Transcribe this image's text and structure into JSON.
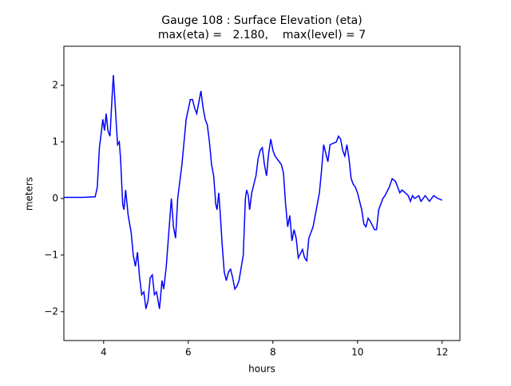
{
  "chart_data": {
    "type": "line",
    "title": "Gauge 108 : Surface Elevation (eta)",
    "subtitle": "max(eta) =   2.180,    max(level) = 7",
    "x_label": "hours",
    "y_label": "meters",
    "xlim": [
      3.06,
      12.42
    ],
    "ylim": [
      -2.51,
      2.69
    ],
    "xticks": [
      4,
      6,
      8,
      10,
      12
    ],
    "yticks": [
      {
        "value": -2,
        "label": "−2"
      },
      {
        "value": -1,
        "label": "−1"
      },
      0,
      1,
      2
    ],
    "grid": false,
    "series": [
      {
        "color": "#0000ff",
        "x": [
          3.06,
          3.5,
          3.8,
          3.85,
          3.9,
          3.95,
          3.98,
          4.02,
          4.06,
          4.1,
          4.15,
          4.2,
          4.23,
          4.26,
          4.3,
          4.33,
          4.37,
          4.4,
          4.45,
          4.48,
          4.52,
          4.58,
          4.65,
          4.7,
          4.75,
          4.8,
          4.85,
          4.9,
          4.95,
          5.0,
          5.05,
          5.1,
          5.15,
          5.2,
          5.25,
          5.32,
          5.38,
          5.42,
          5.48,
          5.55,
          5.6,
          5.65,
          5.7,
          5.75,
          5.8,
          5.85,
          5.9,
          5.95,
          6.05,
          6.1,
          6.15,
          6.2,
          6.25,
          6.3,
          6.35,
          6.4,
          6.45,
          6.5,
          6.55,
          6.6,
          6.65,
          6.68,
          6.72,
          6.75,
          6.8,
          6.85,
          6.9,
          6.95,
          7.0,
          7.05,
          7.1,
          7.15,
          7.2,
          7.3,
          7.35,
          7.38,
          7.42,
          7.45,
          7.5,
          7.6,
          7.65,
          7.7,
          7.75,
          7.8,
          7.85,
          7.9,
          7.95,
          8.0,
          8.05,
          8.15,
          8.2,
          8.25,
          8.3,
          8.35,
          8.4,
          8.45,
          8.5,
          8.55,
          8.6,
          8.7,
          8.75,
          8.8,
          8.85,
          8.9,
          8.95,
          9.0,
          9.1,
          9.15,
          9.2,
          9.25,
          9.3,
          9.35,
          9.5,
          9.55,
          9.6,
          9.65,
          9.7,
          9.75,
          9.8,
          9.85,
          9.9,
          9.95,
          10.0,
          10.1,
          10.15,
          10.2,
          10.25,
          10.3,
          10.4,
          10.45,
          10.5,
          10.6,
          10.65,
          10.75,
          10.82,
          10.9,
          11.0,
          11.05,
          11.1,
          11.2,
          11.25,
          11.3,
          11.35,
          11.45,
          11.5,
          11.55,
          11.6,
          11.7,
          11.8,
          11.9,
          12.0
        ],
        "values": [
          0.02,
          0.02,
          0.03,
          0.2,
          0.9,
          1.2,
          1.4,
          1.2,
          1.5,
          1.2,
          1.1,
          1.8,
          2.18,
          1.8,
          1.3,
          0.95,
          1.0,
          0.7,
          -0.1,
          -0.2,
          0.15,
          -0.3,
          -0.6,
          -1.0,
          -1.2,
          -0.95,
          -1.4,
          -1.7,
          -1.65,
          -1.95,
          -1.8,
          -1.4,
          -1.35,
          -1.7,
          -1.65,
          -1.95,
          -1.45,
          -1.6,
          -1.2,
          -0.5,
          0,
          -0.5,
          -0.7,
          0,
          0.3,
          0.6,
          1.0,
          1.4,
          1.75,
          1.75,
          1.6,
          1.5,
          1.7,
          1.9,
          1.6,
          1.4,
          1.3,
          1.0,
          0.6,
          0.4,
          -0.1,
          -0.2,
          0.1,
          -0.2,
          -0.8,
          -1.3,
          -1.45,
          -1.3,
          -1.25,
          -1.4,
          -1.6,
          -1.55,
          -1.45,
          -1.0,
          0.0,
          0.15,
          0.05,
          -0.2,
          0.1,
          0.4,
          0.7,
          0.85,
          0.9,
          0.6,
          0.4,
          0.8,
          1.05,
          0.85,
          0.75,
          0.65,
          0.6,
          0.45,
          -0.1,
          -0.5,
          -0.3,
          -0.75,
          -0.55,
          -0.7,
          -1.05,
          -0.9,
          -1.05,
          -1.1,
          -0.7,
          -0.6,
          -0.5,
          -0.3,
          0.1,
          0.5,
          0.95,
          0.8,
          0.65,
          0.95,
          1.0,
          1.1,
          1.05,
          0.85,
          0.75,
          0.95,
          0.7,
          0.35,
          0.25,
          0.2,
          0.1,
          -0.2,
          -0.45,
          -0.5,
          -0.35,
          -0.4,
          -0.55,
          -0.55,
          -0.2,
          0.0,
          0.05,
          0.2,
          0.35,
          0.3,
          0.1,
          0.15,
          0.12,
          0.05,
          -0.05,
          0.05,
          0.0,
          0.05,
          -0.05,
          0.0,
          0.05,
          -0.05,
          0.05,
          0.0,
          -0.03
        ]
      }
    ]
  }
}
